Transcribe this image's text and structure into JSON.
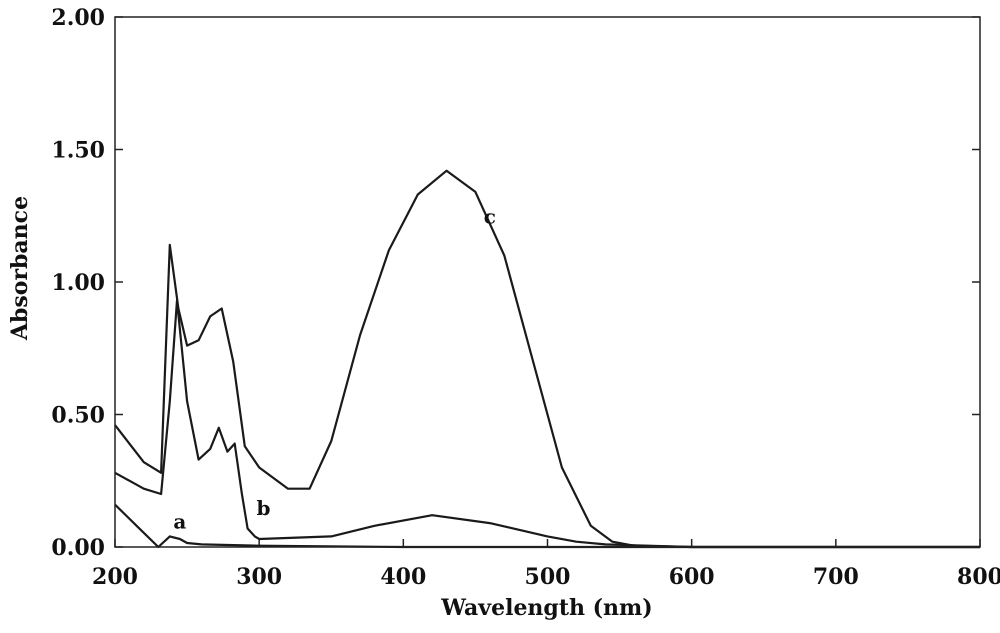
{
  "chart_data": {
    "type": "line",
    "xlabel": "Wavelength (nm)",
    "ylabel": "Absorbance",
    "xlim": [
      200,
      800
    ],
    "ylim": [
      0,
      2
    ],
    "x_ticks": [
      "200",
      "300",
      "400",
      "500",
      "600",
      "700",
      "800"
    ],
    "y_ticks": [
      "0.00",
      "0.50",
      "1.00",
      "1.50",
      "2.00"
    ],
    "grid": false,
    "series": [
      {
        "name": "a",
        "x": [
          200,
          215,
          230,
          238,
          245,
          250,
          260,
          300,
          400,
          500,
          600,
          800
        ],
        "y": [
          0.16,
          0.08,
          0.0,
          0.04,
          0.03,
          0.015,
          0.01,
          0.005,
          0.0,
          0.0,
          0.0,
          0.0
        ]
      },
      {
        "name": "b",
        "x": [
          200,
          220,
          232,
          238,
          243,
          250,
          258,
          266,
          272,
          278,
          283,
          288,
          292,
          297,
          300,
          350,
          380,
          420,
          460,
          500,
          520,
          540,
          600,
          800
        ],
        "y": [
          0.28,
          0.22,
          0.2,
          0.55,
          0.93,
          0.55,
          0.33,
          0.37,
          0.45,
          0.36,
          0.39,
          0.2,
          0.07,
          0.04,
          0.03,
          0.04,
          0.08,
          0.12,
          0.09,
          0.04,
          0.02,
          0.01,
          0.0,
          0.0
        ]
      },
      {
        "name": "c",
        "x": [
          200,
          220,
          232,
          238,
          244,
          250,
          258,
          266,
          274,
          282,
          290,
          300,
          320,
          335,
          350,
          370,
          390,
          410,
          430,
          450,
          470,
          490,
          510,
          530,
          545,
          560,
          600,
          800
        ],
        "y": [
          0.46,
          0.32,
          0.28,
          1.14,
          0.9,
          0.76,
          0.78,
          0.87,
          0.9,
          0.7,
          0.38,
          0.3,
          0.22,
          0.22,
          0.4,
          0.8,
          1.12,
          1.33,
          1.42,
          1.34,
          1.1,
          0.7,
          0.3,
          0.08,
          0.02,
          0.005,
          0.0,
          0.0
        ]
      }
    ],
    "annotations": [
      {
        "text": "a",
        "x": 245,
        "y": 0.07
      },
      {
        "text": "b",
        "x": 303,
        "y": 0.12
      },
      {
        "text": "c",
        "x": 460,
        "y": 1.22
      }
    ]
  }
}
